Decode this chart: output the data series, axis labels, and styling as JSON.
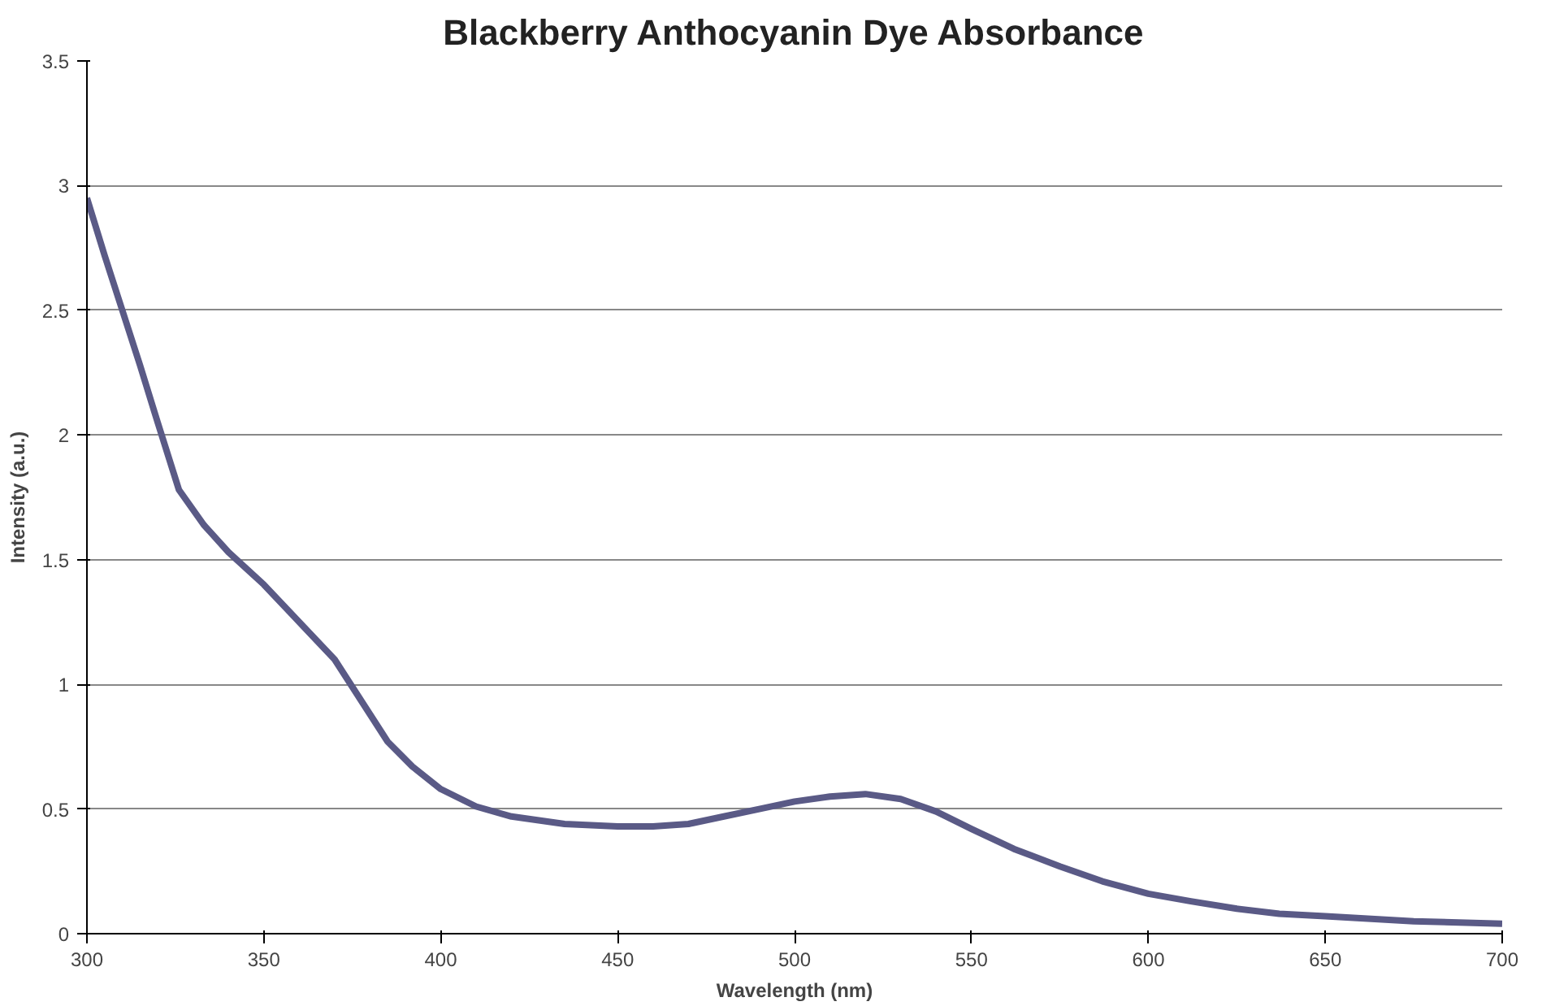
{
  "chart_data": {
    "type": "line",
    "title": "Blackberry Anthocyanin Dye Absorbance",
    "xlabel": "Wavelength (nm)",
    "ylabel": "Intensity (a.u.)",
    "x": [
      300,
      305,
      310,
      315,
      320,
      326,
      333,
      340,
      350,
      360,
      370,
      375,
      380,
      385,
      392,
      400,
      410,
      420,
      435,
      450,
      460,
      470,
      480,
      490,
      500,
      510,
      520,
      530,
      540,
      550,
      562,
      575,
      587,
      600,
      612,
      625,
      637,
      650,
      675,
      700
    ],
    "series": [
      {
        "color": "#5a5a86",
        "values": [
          2.95,
          2.72,
          2.5,
          2.28,
          2.05,
          1.78,
          1.64,
          1.53,
          1.4,
          1.25,
          1.1,
          0.99,
          0.88,
          0.77,
          0.67,
          0.58,
          0.51,
          0.47,
          0.44,
          0.43,
          0.43,
          0.44,
          0.47,
          0.5,
          0.53,
          0.55,
          0.56,
          0.54,
          0.49,
          0.42,
          0.34,
          0.27,
          0.21,
          0.16,
          0.13,
          0.1,
          0.08,
          0.07,
          0.05,
          0.04
        ]
      }
    ],
    "xlim": [
      300,
      700
    ],
    "ylim": [
      0,
      3.5
    ],
    "xticks": [
      300,
      350,
      400,
      450,
      500,
      550,
      600,
      650,
      700
    ],
    "yticks": [
      0,
      0.5,
      1,
      1.5,
      2,
      2.5,
      3,
      3.5
    ],
    "grid": "y",
    "marker": "none",
    "line_style": "solid"
  }
}
